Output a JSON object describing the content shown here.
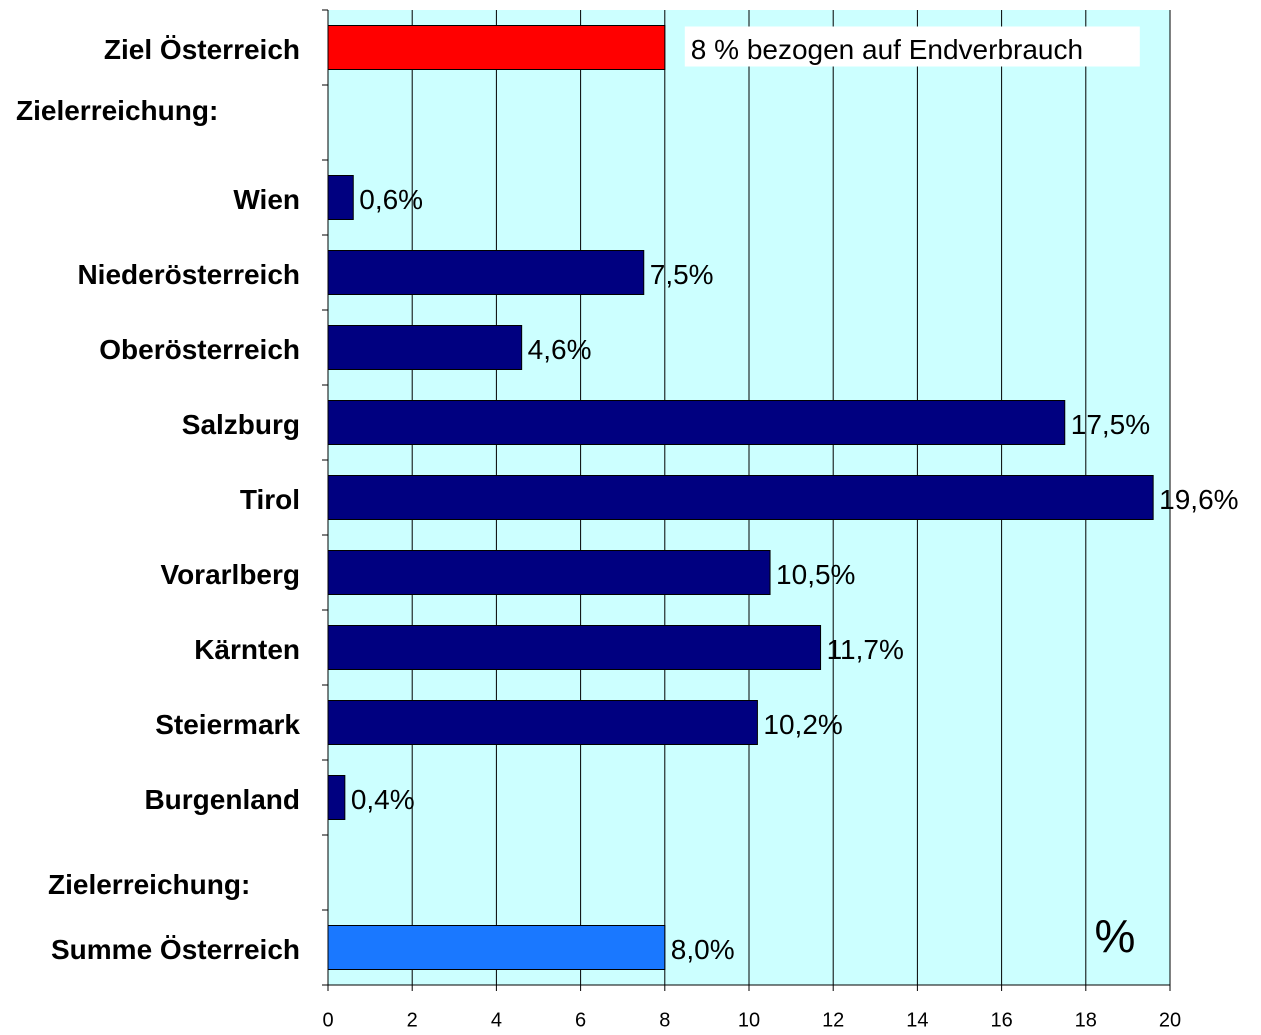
{
  "chart_data": {
    "type": "bar",
    "orientation": "horizontal",
    "categories": [
      "Ziel Österreich",
      "Zielerreichung:",
      "Wien",
      "Niederösterreich",
      "Oberösterreich",
      "Salzburg",
      "Tirol",
      "Vorarlberg",
      "Kärnten",
      "Steiermark",
      "Burgenland",
      "Zielerreichung:",
      "Summe Österreich"
    ],
    "values": [
      8,
      null,
      0.6,
      7.5,
      4.6,
      17.5,
      19.6,
      10.5,
      11.7,
      10.2,
      0.4,
      null,
      8.0
    ],
    "value_labels": [
      "8 % bezogen auf Endverbrauch",
      null,
      "0,6%",
      "7,5%",
      "4,6%",
      "17,5%",
      "19,6%",
      "10,5%",
      "11,7%",
      "10,2%",
      "0,4%",
      null,
      "8,0%"
    ],
    "colors": [
      "#ff0000",
      null,
      "#000080",
      "#000080",
      "#000080",
      "#000080",
      "#000080",
      "#000080",
      "#000080",
      "#000080",
      "#000080",
      null,
      "#1a78ff"
    ],
    "xlim": [
      0,
      20
    ],
    "xticks": [
      0,
      2,
      4,
      6,
      8,
      10,
      12,
      14,
      16,
      18,
      20
    ],
    "grid": true,
    "annotation": "%"
  }
}
